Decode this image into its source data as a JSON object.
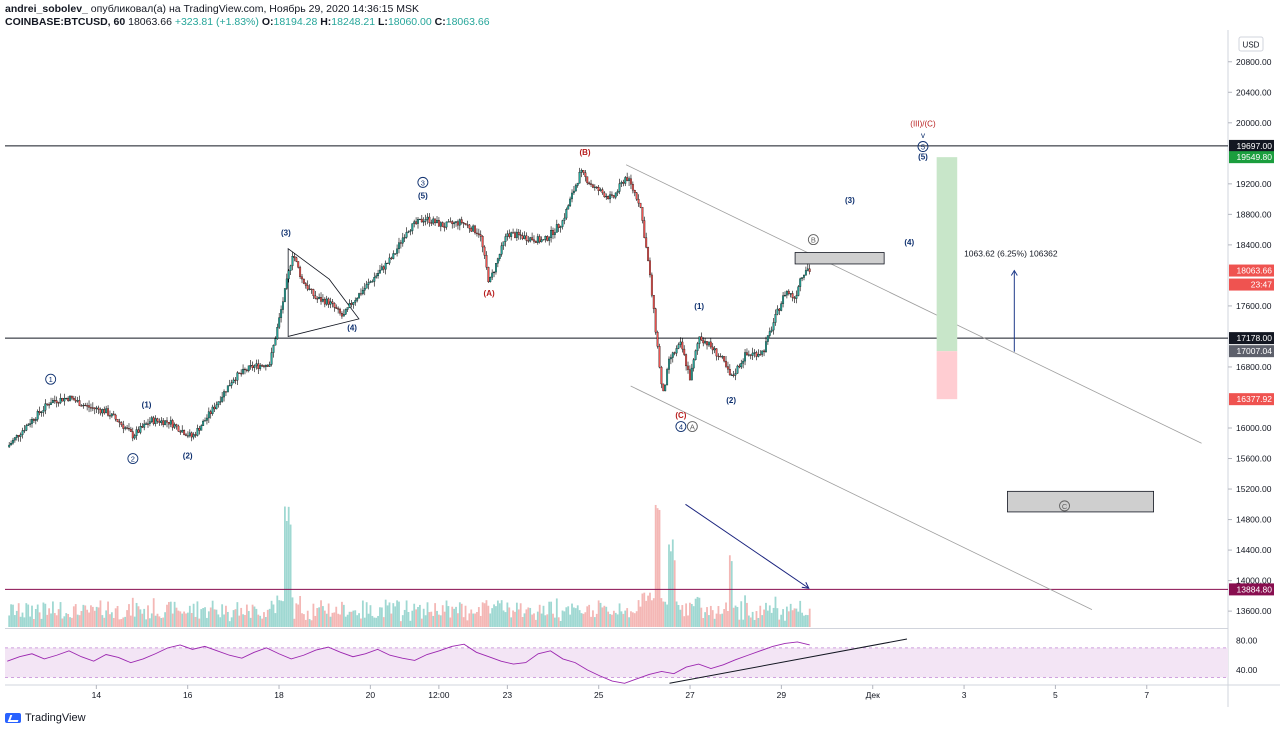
{
  "header": {
    "author": "andrei_sobolev_",
    "published": "опубликовал(а) на TradingView.com, Ноябрь 29, 2020 14:36:15 MSK",
    "symbol": "COINBASE:BTCUSD, 60",
    "last": "18063.66",
    "change": "+323.81 (+1.83%)",
    "o_label": "O:",
    "o": "18194.28",
    "h_label": "H:",
    "h": "18248.21",
    "l_label": "L:",
    "l": "18060.00",
    "c_label": "C:",
    "c": "18063.66"
  },
  "footer": {
    "brand": "TradingView"
  },
  "colors": {
    "up": "#26a69a",
    "down": "#ef5350",
    "rsi": "#9c27b0",
    "rsi_band": "#f3e5f5",
    "green_zone": "#c8e6c9",
    "red_zone": "#ffcdd2"
  },
  "chart_data": {
    "type": "line",
    "currency": "USD",
    "y_ticks": [
      "20800.00",
      "20400.00",
      "20000.00",
      "19200.00",
      "18800.00",
      "18400.00",
      "17600.00",
      "16800.00",
      "16000.00",
      "15600.00",
      "15200.00",
      "14800.00",
      "14400.00",
      "14000.00",
      "13600.00"
    ],
    "y_tick_values": [
      20800,
      20400,
      20000,
      19200,
      18800,
      18400,
      17600,
      16800,
      16000,
      15600,
      15200,
      14800,
      14400,
      14000,
      13600
    ],
    "x_ticks": [
      "14",
      "16",
      "18",
      "20",
      "12:00",
      "23",
      "25",
      "27",
      "29",
      "Дек",
      "3",
      "5",
      "7"
    ],
    "x_tick_values": [
      14,
      16,
      18,
      20,
      21.5,
      23,
      25,
      27,
      29,
      31,
      33,
      35,
      37
    ],
    "price_labels": [
      {
        "text": "19697.00",
        "value": 19697,
        "style": "dark"
      },
      {
        "text": "19549.80",
        "value": 19549.8,
        "style": "green"
      },
      {
        "text": "18063.66",
        "value": 18063.66,
        "style": "red"
      },
      {
        "text": "23:47",
        "value": 17880,
        "style": "red"
      },
      {
        "text": "17178.00",
        "value": 17178,
        "style": "dark"
      },
      {
        "text": "17007.04",
        "value": 17007.04,
        "style": "gray"
      },
      {
        "text": "16377.92",
        "value": 16377.92,
        "style": "red"
      },
      {
        "text": "13884.80",
        "value": 13884.8,
        "style": "maroon"
      }
    ],
    "price_path": [
      [
        12.05,
        15750
      ],
      [
        12.5,
        16050
      ],
      [
        13,
        16350
      ],
      [
        13.4,
        16400
      ],
      [
        13.8,
        16280
      ],
      [
        14.2,
        16220
      ],
      [
        14.5,
        16080
      ],
      [
        14.8,
        15900
      ],
      [
        15.2,
        16100
      ],
      [
        15.6,
        16080
      ],
      [
        16.1,
        15880
      ],
      [
        16.5,
        16200
      ],
      [
        17,
        16650
      ],
      [
        17.4,
        16800
      ],
      [
        17.8,
        16850
      ],
      [
        18.1,
        17700
      ],
      [
        18.3,
        18300
      ],
      [
        18.5,
        17950
      ],
      [
        18.8,
        17700
      ],
      [
        19.1,
        17650
      ],
      [
        19.4,
        17450
      ],
      [
        19.6,
        17650
      ],
      [
        19.9,
        17850
      ],
      [
        20.2,
        18050
      ],
      [
        20.5,
        18250
      ],
      [
        20.8,
        18600
      ],
      [
        21.2,
        18750
      ],
      [
        21.6,
        18650
      ],
      [
        22,
        18700
      ],
      [
        22.4,
        18550
      ],
      [
        22.6,
        17900
      ],
      [
        23,
        18550
      ],
      [
        23.4,
        18500
      ],
      [
        23.8,
        18450
      ],
      [
        24.2,
        18700
      ],
      [
        24.6,
        19350
      ],
      [
        24.9,
        19150
      ],
      [
        25.3,
        19000
      ],
      [
        25.6,
        19300
      ],
      [
        25.9,
        18950
      ],
      [
        26.1,
        18100
      ],
      [
        26.3,
        17000
      ],
      [
        26.4,
        16400
      ],
      [
        26.55,
        16900
      ],
      [
        26.8,
        17100
      ],
      [
        27,
        16650
      ],
      [
        27.2,
        17200
      ],
      [
        27.4,
        17100
      ],
      [
        27.7,
        16900
      ],
      [
        27.9,
        16650
      ],
      [
        28.2,
        16950
      ],
      [
        28.6,
        17000
      ],
      [
        28.9,
        17500
      ],
      [
        29.1,
        17800
      ],
      [
        29.3,
        17700
      ],
      [
        29.4,
        17950
      ],
      [
        29.55,
        18100
      ],
      [
        29.62,
        18063.66
      ]
    ],
    "ohlc": {
      "open": 18194.28,
      "high": 18248.21,
      "low": 18060.0,
      "close": 18063.66
    },
    "wave_labels": [
      {
        "text": "1",
        "circled": true,
        "x": 13.0,
        "y": 16600
      },
      {
        "text": "2",
        "circled": true,
        "x": 14.8,
        "y": 15560
      },
      {
        "text": "(1)",
        "x": 15.1,
        "y": 16270
      },
      {
        "text": "(2)",
        "x": 16.0,
        "y": 15600
      },
      {
        "text": "(3)",
        "x": 18.15,
        "y": 18520
      },
      {
        "text": "(4)",
        "x": 19.6,
        "y": 17280
      },
      {
        "text": "3",
        "circled": true,
        "x": 21.15,
        "y": 19180
      },
      {
        "text": "(5)",
        "x": 21.15,
        "y": 19010
      },
      {
        "text": "(A)",
        "x": 22.6,
        "y": 17730
      },
      {
        "text": "(B)",
        "x": 24.7,
        "y": 19580
      },
      {
        "text": "(C)",
        "x": 26.8,
        "y": 16130
      },
      {
        "text": "4",
        "circled": true,
        "x": 26.8,
        "y": 15980
      },
      {
        "text": "A",
        "circled": true,
        "gray": true,
        "x": 27.05,
        "y": 15980
      },
      {
        "text": "(1)",
        "x": 27.2,
        "y": 17560
      },
      {
        "text": "(2)",
        "x": 27.9,
        "y": 16330
      },
      {
        "text": "B",
        "circled": true,
        "gray": true,
        "x": 29.7,
        "y": 18430
      },
      {
        "text": "(3)",
        "x": 30.5,
        "y": 18950
      },
      {
        "text": "(4)",
        "x": 31.8,
        "y": 18400
      },
      {
        "text": "(III)/(C)",
        "x": 32.1,
        "y": 19950
      },
      {
        "text": "v",
        "x": 32.1,
        "y": 19800
      },
      {
        "text": "5",
        "circled": true,
        "x": 32.1,
        "y": 19650
      },
      {
        "text": "(5)",
        "x": 32.1,
        "y": 19520
      },
      {
        "text": "C",
        "circled": true,
        "gray": true,
        "x": 35.2,
        "y": 14940
      }
    ],
    "horizontal_lines": [
      {
        "value": 19697,
        "color": "#131722"
      },
      {
        "value": 17178,
        "color": "#131722"
      },
      {
        "value": 13884.8,
        "color": "#880e4f"
      }
    ],
    "channel_lines": [
      {
        "from": [
          25.6,
          19450
        ],
        "to": [
          38.2,
          15800
        ]
      },
      {
        "from": [
          25.7,
          16550
        ],
        "to": [
          35.8,
          13620
        ]
      }
    ],
    "triangle": [
      [
        18.2,
        18350
      ],
      [
        19.1,
        17950
      ],
      [
        19.75,
        17430
      ],
      [
        18.2,
        17200
      ]
    ],
    "zones": [
      {
        "x1": 29.3,
        "x2": 31.25,
        "y1": 18150,
        "y2": 18300,
        "fill": "#cfcfcf"
      },
      {
        "x1": 33.95,
        "x2": 37.15,
        "y1": 14900,
        "y2": 15170,
        "fill": "#cfcfcf"
      }
    ],
    "position": {
      "x1": 32.4,
      "x2": 32.85,
      "target": 19549.8,
      "entry": 17007.04,
      "stop": 16377.92
    },
    "measure": {
      "text": "1063.62 (6.25%) 106362",
      "x": 33.0,
      "y": 18250,
      "arrow_x": 34.1,
      "arrow_from": 17000,
      "arrow_to": 18063.66
    },
    "volume_arrow": {
      "from": [
        26.9,
        15000
      ],
      "to": [
        29.6,
        13900
      ]
    },
    "rsi": {
      "levels": [
        "80.00",
        "40.00"
      ],
      "level_values": [
        80,
        40
      ],
      "band": [
        70,
        30
      ],
      "trendline": {
        "from": [
          26.55,
          22
        ],
        "to": [
          31.75,
          82
        ]
      },
      "values": [
        52,
        58,
        62,
        55,
        60,
        66,
        58,
        52,
        61,
        57,
        50,
        55,
        62,
        70,
        74,
        68,
        72,
        66,
        60,
        56,
        64,
        70,
        62,
        55,
        60,
        67,
        71,
        64,
        58,
        62,
        68,
        60,
        56,
        53,
        61,
        66,
        72,
        75,
        64,
        58,
        52,
        48,
        50,
        62,
        66,
        55,
        50,
        40,
        32,
        25,
        22,
        28,
        34,
        38,
        35,
        44,
        48,
        42,
        47,
        54,
        60,
        66,
        72,
        76,
        78,
        74
      ]
    }
  }
}
